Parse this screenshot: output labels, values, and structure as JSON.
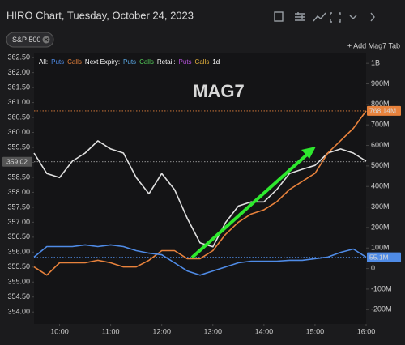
{
  "header": {
    "title": "HIRO Chart, Tuesday, October 24, 2023"
  },
  "tabs": {
    "chip": "S&P 500",
    "add": "+ Add Mag7 Tab"
  },
  "chart_data": {
    "type": "line",
    "annotation": "MAG7",
    "legend": [
      {
        "label": "All:",
        "items": [
          {
            "name": "Puts",
            "color": "#4f8be6"
          },
          {
            "name": "Calls",
            "color": "#e8823c"
          }
        ]
      },
      {
        "label": "Next Expiry:",
        "items": [
          {
            "name": "Puts",
            "color": "#5aa9e6"
          },
          {
            "name": "Calls",
            "color": "#55d05a"
          }
        ]
      },
      {
        "label": "Retail:",
        "items": [
          {
            "name": "Puts",
            "color": "#b14fd6"
          },
          {
            "name": "Calls",
            "color": "#e8b43c"
          }
        ]
      }
    ],
    "period": "1d",
    "x": [
      9.5,
      9.75,
      10,
      10.25,
      10.5,
      10.75,
      11,
      11.25,
      11.5,
      11.75,
      12,
      12.25,
      12.5,
      12.75,
      13,
      13.25,
      13.5,
      13.75,
      14,
      14.25,
      14.5,
      14.75,
      15,
      15.25,
      15.5,
      15.75,
      16
    ],
    "xlim": [
      9.5,
      16
    ],
    "xticks": [
      {
        "value": 10,
        "label": "10:00"
      },
      {
        "value": 11,
        "label": "11:00"
      },
      {
        "value": 12,
        "label": "12:00"
      },
      {
        "value": 13,
        "label": "13:00"
      },
      {
        "value": 14,
        "label": "14:00"
      },
      {
        "value": 15,
        "label": "15:00"
      },
      {
        "value": 16,
        "label": "16:00"
      }
    ],
    "ylim": [
      353.6,
      362.64
    ],
    "yticks": [
      {
        "value": 354,
        "label": "354.00"
      },
      {
        "value": 354.5,
        "label": "354.50"
      },
      {
        "value": 355,
        "label": "355.00"
      },
      {
        "value": 355.5,
        "label": "355.50"
      },
      {
        "value": 356,
        "label": "356.00"
      },
      {
        "value": 356.5,
        "label": "356.50"
      },
      {
        "value": 357,
        "label": "357.00"
      },
      {
        "value": 357.5,
        "label": "357.50"
      },
      {
        "value": 358,
        "label": "358.00"
      },
      {
        "value": 358.5,
        "label": "358.50"
      },
      {
        "value": 359,
        "label": "359.00"
      },
      {
        "value": 359.5,
        "label": "359.50"
      },
      {
        "value": 360,
        "label": "360.00"
      },
      {
        "value": 360.5,
        "label": "360.50"
      },
      {
        "value": 361,
        "label": "361.00"
      },
      {
        "value": 361.5,
        "label": "361.50"
      },
      {
        "value": 362,
        "label": "362.00"
      },
      {
        "value": 362.5,
        "label": "362.50"
      }
    ],
    "y2lim": [
      -270,
      1048
    ],
    "y2ticks": [
      {
        "value": -200,
        "label": "-200M"
      },
      {
        "value": -100,
        "label": "-100M"
      },
      0,
      {
        "value": 100,
        "label": "100M"
      },
      {
        "value": 200,
        "label": "200M"
      },
      {
        "value": 300,
        "label": "300M"
      },
      {
        "value": 400,
        "label": "400M"
      },
      {
        "value": 500,
        "label": "500M"
      },
      {
        "value": 600,
        "label": "600M"
      },
      {
        "value": 700,
        "label": "700M"
      },
      {
        "value": 800,
        "label": "800M"
      },
      {
        "value": 900,
        "label": "900M"
      },
      {
        "value": 1000,
        "label": "1B"
      }
    ],
    "series": [
      {
        "color": "#e0e0e0",
        "axis": "y",
        "values": [
          359.31,
          358.63,
          358.49,
          359.04,
          359.31,
          359.72,
          359.45,
          359.31,
          358.49,
          357.95,
          358.63,
          358.09,
          357.13,
          356.31,
          356.18,
          356.99,
          357.54,
          357.68,
          357.68,
          358.09,
          358.63,
          358.77,
          358.9,
          359.31,
          359.45,
          359.31,
          359.04
        ]
      },
      {
        "color": "#e8823c",
        "axis": "y2",
        "values": [
          8,
          -32,
          28,
          28,
          28,
          40,
          28,
          8,
          8,
          40,
          87,
          87,
          48,
          48,
          87,
          167,
          226,
          266,
          286,
          325,
          385,
          425,
          464,
          563,
          623,
          683,
          768.14
        ]
      },
      {
        "color": "#4f8be6",
        "axis": "y2",
        "values": [
          56,
          107,
          107,
          107,
          115,
          107,
          115,
          107,
          87,
          75,
          67,
          28,
          -12,
          -32,
          -12,
          8,
          28,
          36,
          36,
          36,
          40,
          40,
          48,
          56,
          79,
          95,
          55.1
        ]
      }
    ],
    "markers": [
      {
        "axis": "y",
        "value": 359.02,
        "label": "359.02",
        "color": "#555555"
      },
      {
        "axis": "y2",
        "value": 768.14,
        "label": "768.14M",
        "color": "#e8823c"
      },
      {
        "axis": "y2",
        "value": 55.1,
        "label": "55.1M",
        "color": "#4f8be6"
      }
    ]
  }
}
